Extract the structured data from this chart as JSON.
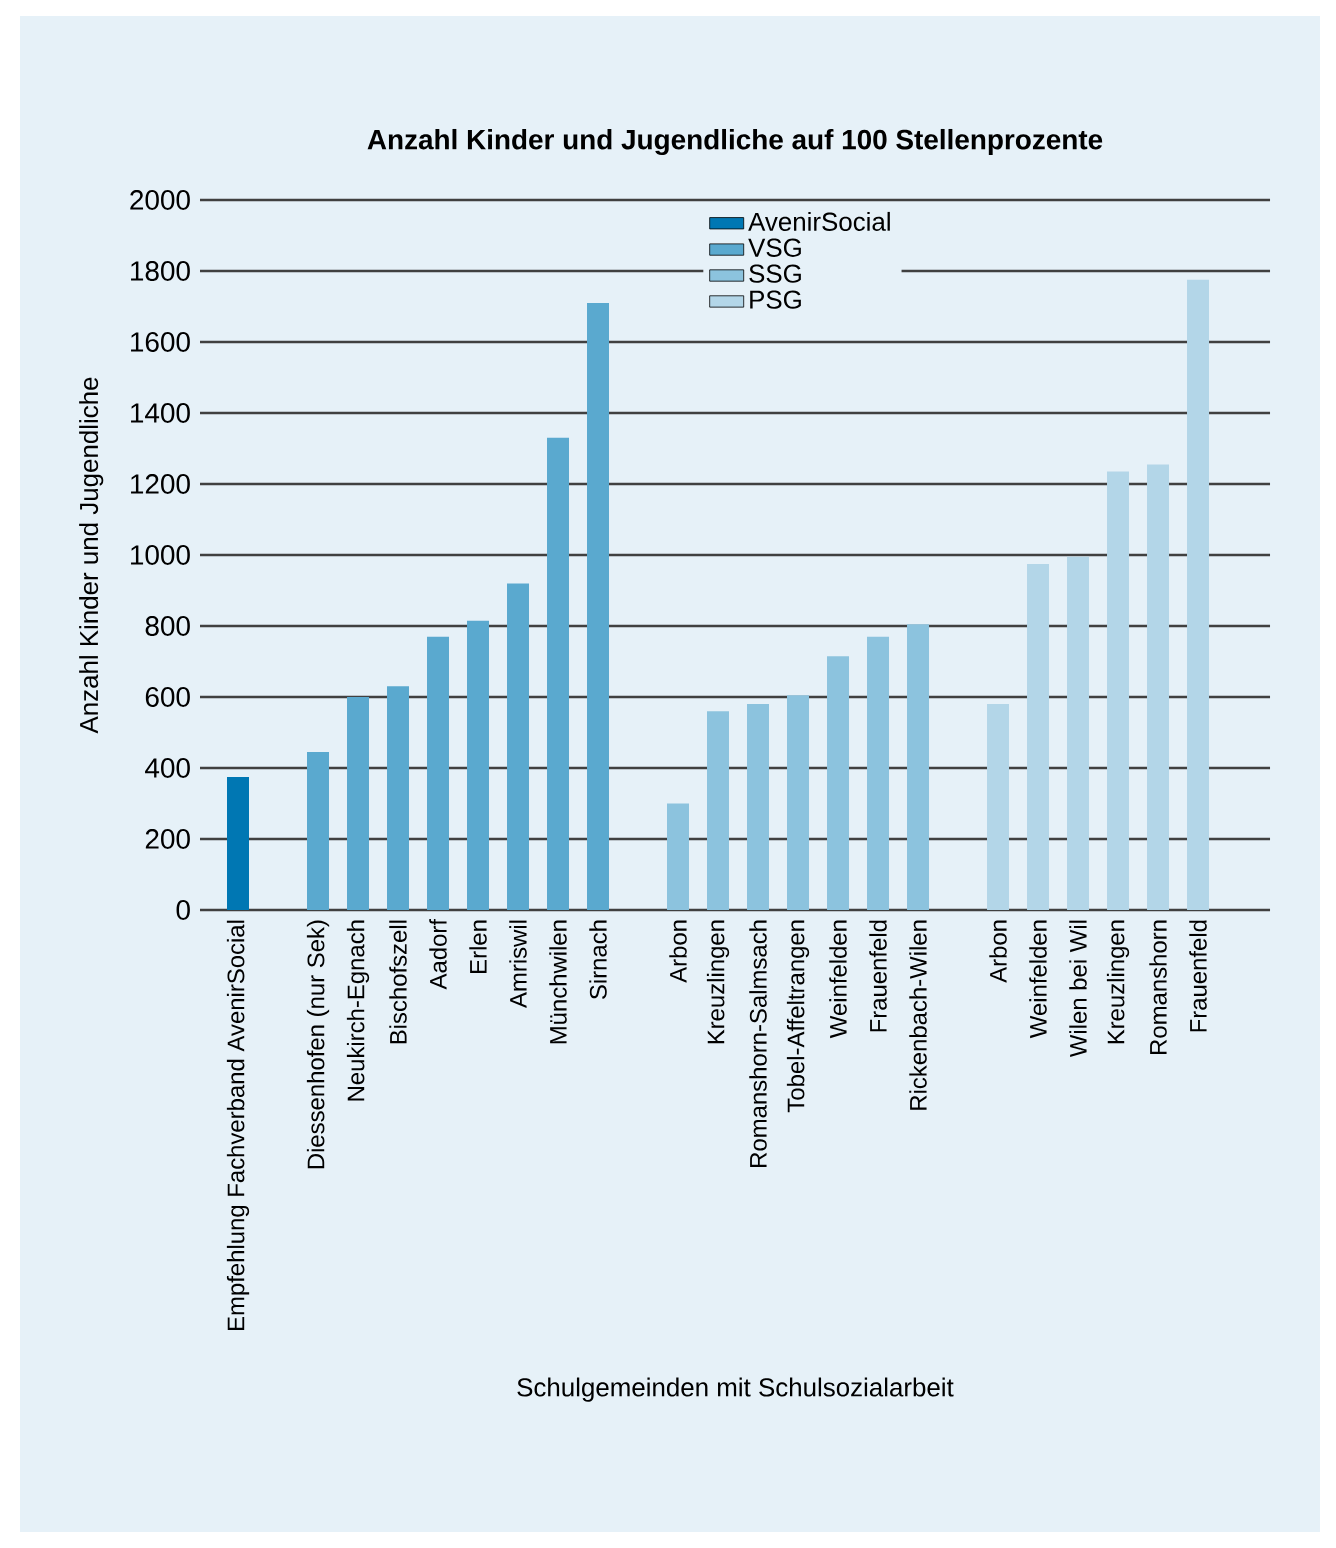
{
  "chart_data": {
    "type": "bar",
    "title": "Anzahl Kinder und Jugendliche auf 100 Stellenprozente",
    "xlabel": "Schulgemeinden mit Schulsozialarbeit",
    "ylabel": "Anzahl Kinder und Jugendliche",
    "categories": [
      "Empfehlung Fachverband AvenirSocial",
      null,
      "Diessenhofen (nur Sek)",
      "Neukirch-Egnach",
      "Bischofszell",
      "Aadorf",
      "Erlen",
      "Amriswil",
      "Münchwilen",
      "Sirnach",
      null,
      "Arbon",
      "Kreuzlingen",
      "Romanshorn-Salmsach",
      "Tobel-Affeltrangen",
      "Weinfelden",
      "Frauenfeld",
      "Rickenbach-Wilen",
      null,
      "Arbon",
      "Weinfelden",
      "Wilen bei Wil",
      "Kreuzlingen",
      "Romanshorn",
      "Frauenfeld"
    ],
    "series": [
      {
        "name": "AvenirSocial",
        "color": "#0077b3",
        "values": [
          375,
          null,
          null,
          null,
          null,
          null,
          null,
          null,
          null,
          null,
          null,
          null,
          null,
          null,
          null,
          null,
          null,
          null,
          null,
          null,
          null,
          null,
          null,
          null,
          null
        ]
      },
      {
        "name": "VSG",
        "color": "#5aa9cf",
        "values": [
          null,
          null,
          445,
          600,
          630,
          770,
          815,
          920,
          1330,
          1710,
          null,
          null,
          null,
          null,
          null,
          null,
          null,
          null,
          null,
          null,
          null,
          null,
          null,
          null,
          null
        ]
      },
      {
        "name": "SSG",
        "color": "#8cc3de",
        "values": [
          null,
          null,
          null,
          null,
          null,
          null,
          null,
          null,
          null,
          null,
          null,
          300,
          560,
          580,
          605,
          715,
          770,
          805,
          null,
          null,
          null,
          null,
          null,
          null,
          null
        ]
      },
      {
        "name": "PSG",
        "color": "#b3d6e8",
        "values": [
          null,
          null,
          null,
          null,
          null,
          null,
          null,
          null,
          null,
          null,
          null,
          null,
          null,
          null,
          null,
          null,
          null,
          null,
          null,
          580,
          975,
          995,
          1235,
          1255,
          1775
        ]
      }
    ],
    "ylim": [
      0,
      2000
    ],
    "yticks": [
      0,
      200,
      400,
      600,
      800,
      1000,
      1200,
      1400,
      1600,
      1800,
      2000
    ],
    "grid": "y",
    "legend": "top"
  }
}
